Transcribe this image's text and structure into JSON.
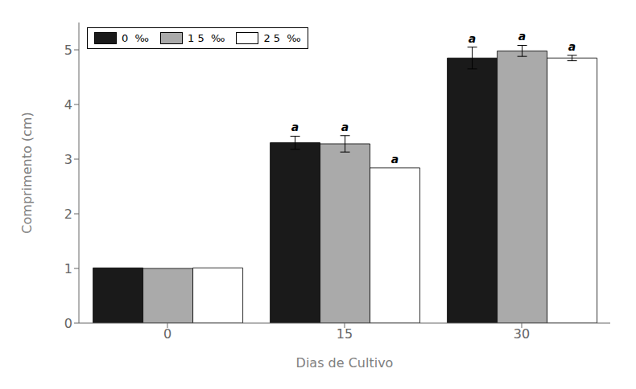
{
  "chart_data": {
    "type": "bar",
    "categories": [
      "0",
      "15",
      "30"
    ],
    "series": [
      {
        "name": "0  ‰",
        "color": "#1a1a1a",
        "values": [
          1.01,
          3.3,
          4.85
        ],
        "errors": [
          0.0,
          0.12,
          0.2
        ]
      },
      {
        "name": "1 5  ‰",
        "color": "#aaaaaa",
        "values": [
          1.0,
          3.28,
          4.98
        ],
        "errors": [
          0.0,
          0.15,
          0.1
        ]
      },
      {
        "name": "2 5  ‰",
        "color": "#ffffff",
        "values": [
          1.01,
          2.84,
          4.85
        ],
        "errors": [
          0.0,
          0.0,
          0.05
        ]
      }
    ],
    "x_label": "Dias de Cultivo",
    "y_label": "Comprimento (cm)",
    "ylim": [
      0,
      5.5
    ],
    "yticks": [
      0,
      1,
      2,
      3,
      4,
      5
    ],
    "grid": false,
    "legend": "upper left",
    "annotations": [
      {
        "text": "a",
        "category": "15",
        "series": "0  ‰"
      },
      {
        "text": "a",
        "category": "15",
        "series": "1 5  ‰"
      },
      {
        "text": "a",
        "category": "15",
        "series": "2 5  ‰"
      },
      {
        "text": "a",
        "category": "30",
        "series": "0  ‰"
      },
      {
        "text": "a",
        "category": "30",
        "series": "1 5  ‰"
      },
      {
        "text": "a",
        "category": "30",
        "series": "2 5  ‰"
      }
    ]
  }
}
